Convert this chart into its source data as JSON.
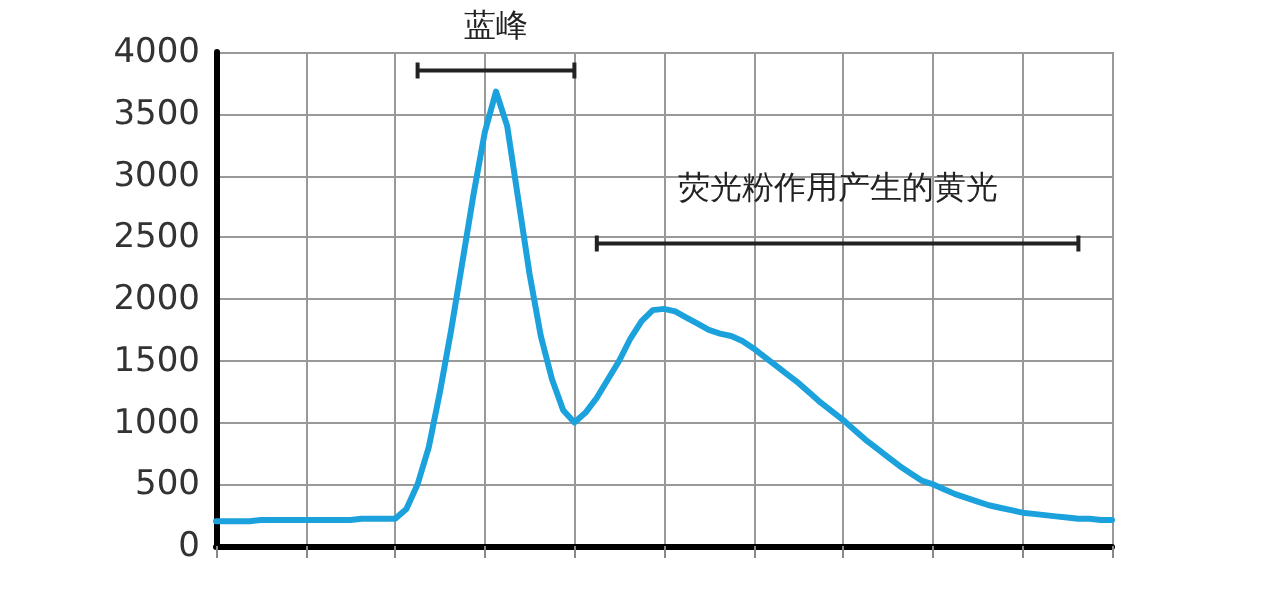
{
  "chart_data": {
    "type": "line",
    "categories": [
      null,
      null,
      null,
      null,
      null,
      null,
      null,
      null,
      null,
      null,
      null,
      null,
      null,
      null,
      null,
      null,
      null,
      null,
      null,
      null,
      null,
      null,
      null,
      null,
      null,
      null,
      null,
      null,
      null,
      null,
      null,
      null,
      null,
      null,
      null,
      null,
      null,
      null,
      null,
      null,
      null,
      null,
      null,
      null,
      null,
      null,
      null,
      null,
      null,
      null,
      null,
      null,
      null,
      null,
      null,
      null,
      null,
      null,
      null,
      null,
      null,
      null,
      null,
      null,
      null,
      null,
      null,
      null,
      null,
      null,
      null,
      null,
      null,
      null,
      null,
      null,
      null,
      null,
      null,
      null,
      null
    ],
    "values": [
      200,
      200,
      200,
      200,
      210,
      210,
      210,
      210,
      210,
      210,
      210,
      210,
      210,
      220,
      220,
      220,
      220,
      300,
      500,
      800,
      1250,
      1750,
      2300,
      2850,
      3350,
      3680,
      3400,
      2800,
      2200,
      1700,
      1350,
      1100,
      1000,
      1080,
      1200,
      1350,
      1500,
      1680,
      1820,
      1910,
      1920,
      1900,
      1850,
      1800,
      1750,
      1720,
      1700,
      1660,
      1600,
      1530,
      1460,
      1390,
      1320,
      1240,
      1160,
      1090,
      1020,
      940,
      860,
      790,
      720,
      650,
      590,
      530,
      500,
      460,
      420,
      390,
      360,
      330,
      310,
      290,
      270,
      260,
      250,
      240,
      230,
      220,
      220,
      210,
      210
    ],
    "color": "#1ba1dc",
    "ylim": [
      0,
      4000
    ],
    "yticks": [
      0,
      500,
      1000,
      1500,
      2000,
      2500,
      3000,
      3500,
      4000
    ],
    "grid": true,
    "tick_labels": "y",
    "annotations": [
      "蓝峰",
      "荧光粉作用产生的黄光"
    ]
  }
}
